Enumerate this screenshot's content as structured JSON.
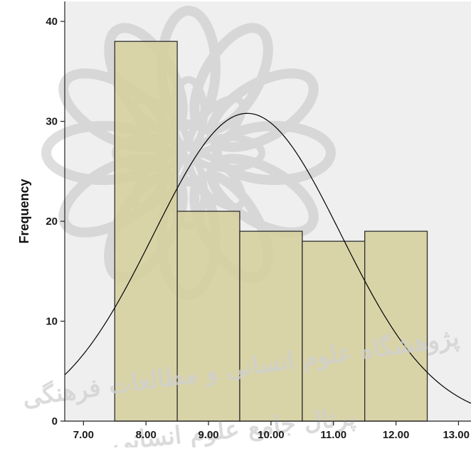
{
  "chart_data": {
    "type": "bar",
    "subtype": "histogram_with_normal_curve",
    "bins": [
      {
        "x0": 7.5,
        "x1": 8.5,
        "frequency": 38
      },
      {
        "x0": 8.5,
        "x1": 9.5,
        "frequency": 21
      },
      {
        "x0": 9.5,
        "x1": 10.5,
        "frequency": 19
      },
      {
        "x0": 10.5,
        "x1": 11.5,
        "frequency": 18
      },
      {
        "x0": 11.5,
        "x1": 12.5,
        "frequency": 19
      }
    ],
    "normal_curve": {
      "mean": 9.62,
      "peak_frequency": 30.8,
      "std": 1.5
    },
    "xlim": [
      6.7,
      13.2
    ],
    "ylim": [
      0,
      42
    ],
    "xticks": [
      7,
      8,
      9,
      10,
      11,
      12,
      13
    ],
    "xtick_labels": [
      "7.00",
      "8.00",
      "9.00",
      "10.00",
      "11.00",
      "12.00",
      "13.00"
    ],
    "yticks": [
      0,
      10,
      20,
      30,
      40
    ],
    "ytick_labels": [
      "0",
      "10",
      "20",
      "30",
      "40"
    ],
    "xlabel": "",
    "ylabel": "Frequency",
    "title": "",
    "grid": false,
    "legend": "none",
    "colors": {
      "bar_fill": "#d6d0a0",
      "bar_stroke": "#2f2f2f",
      "plot_background": "#efefef",
      "curve": "#000000",
      "axis": "#222222"
    }
  },
  "watermark": {
    "line1": "پژوهشگاه علوم انسانی و مطالعات فرهنگی",
    "line2": "پرتال جامع علوم انسانی"
  }
}
